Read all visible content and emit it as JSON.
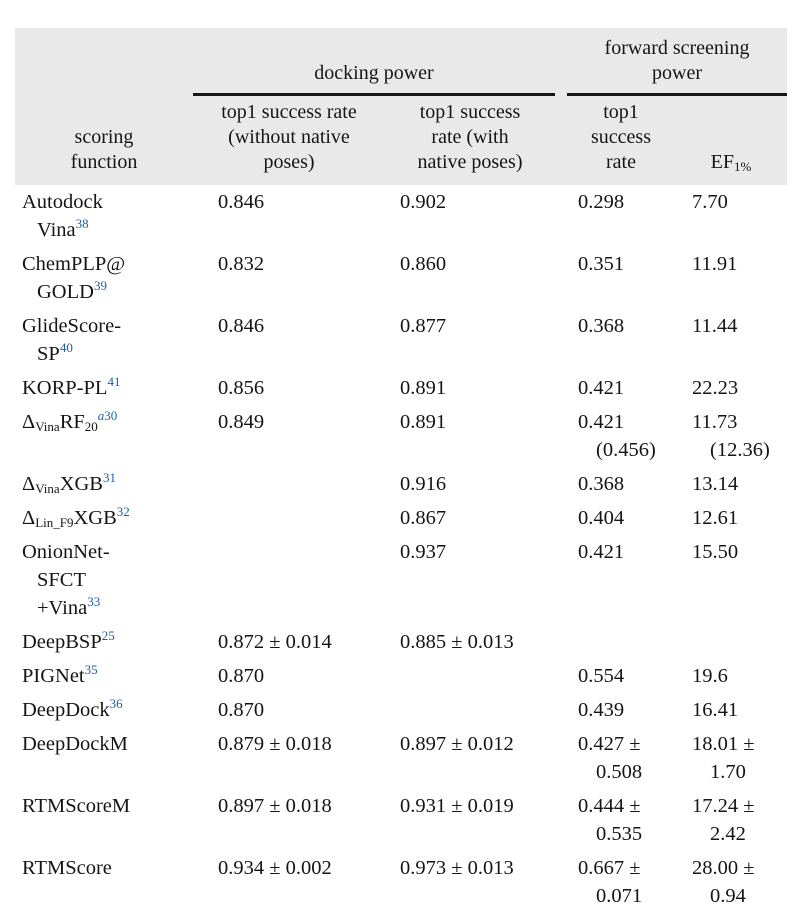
{
  "colors": {
    "reference_blue": "#1d5fa6",
    "header_background": "#e9e9e9",
    "text": "#151515",
    "rule_black": "#161616"
  },
  "table": {
    "header": {
      "scoring_function": "scoring\nfunction",
      "group_docking": "docking power",
      "group_screening": "forward screening\npower",
      "col_top1_without": "top1 success rate\n(without native\nposes)",
      "col_top1_with": "top1 success\nrate (with\nnative poses)",
      "col_top1_fs": "top1\nsuccess\nrate",
      "col_ef": "EF[b]1%[/b]"
    },
    "rows": [
      {
        "name": "Autodock\nVina[s][r]38[/r][/s]",
        "without": "0.846",
        "with": "0.902",
        "top1": "0.298",
        "ef": "7.70"
      },
      {
        "name": "ChemPLP@\nGOLD[s][r]39[/r][/s]",
        "without": "0.832",
        "with": "0.860",
        "top1": "0.351",
        "ef": "11.91"
      },
      {
        "name": "GlideScore-\nSP[s][r]40[/r][/s]",
        "without": "0.846",
        "with": "0.877",
        "top1": "0.368",
        "ef": "11.44"
      },
      {
        "name": "KORP-PL[s][r]41[/r][/s]",
        "without": "0.856",
        "with": "0.891",
        "top1": "0.421",
        "ef": "22.23"
      },
      {
        "name": "Δ[b]Vina[/b]RF[b]20[/b][s][r][i]a[/i]30[/r][/s]",
        "without": "0.849",
        "with": "0.891",
        "top1": "0.421\n(0.456)",
        "ef": "11.73\n(12.36)"
      },
      {
        "name": "Δ[b]Vina[/b]XGB[s][r]31[/r][/s]",
        "without": "",
        "with": "0.916",
        "top1": "0.368",
        "ef": "13.14"
      },
      {
        "name": "Δ[b]Lin_F9[/b]XGB[s][r]32[/r][/s]",
        "without": "",
        "with": "0.867",
        "top1": "0.404",
        "ef": "12.61"
      },
      {
        "name": "OnionNet-\nSFCT\n+Vina[s][r]33[/r][/s]",
        "without": "",
        "with": "0.937",
        "top1": "0.421",
        "ef": "15.50"
      },
      {
        "name": "DeepBSP[s][r]25[/r][/s]",
        "without": "0.872 ± 0.014",
        "with": "0.885 ± 0.013",
        "top1": "",
        "ef": ""
      },
      {
        "name": "PIGNet[s][r]35[/r][/s]",
        "without": "0.870",
        "with": "",
        "top1": "0.554",
        "ef": "19.6"
      },
      {
        "name": "DeepDock[s][r]36[/r][/s]",
        "without": "0.870",
        "with": "",
        "top1": "0.439",
        "ef": "16.41"
      },
      {
        "name": "DeepDockM",
        "without": "0.879 ± 0.018",
        "with": "0.897 ± 0.012",
        "top1": "0.427 ±\n0.508",
        "ef": "18.01 ±\n1.70"
      },
      {
        "name": "RTMScoreM",
        "without": "0.897 ± 0.018",
        "with": "0.931 ± 0.019",
        "top1": "0.444 ±\n0.535",
        "ef": "17.24 ±\n2.42"
      },
      {
        "name": "RTMScore",
        "without": "0.934 ± 0.002",
        "with": "0.973 ± 0.013",
        "top1": "0.667 ±\n0.071",
        "ef": "28.00 ±\n0.94"
      }
    ]
  }
}
